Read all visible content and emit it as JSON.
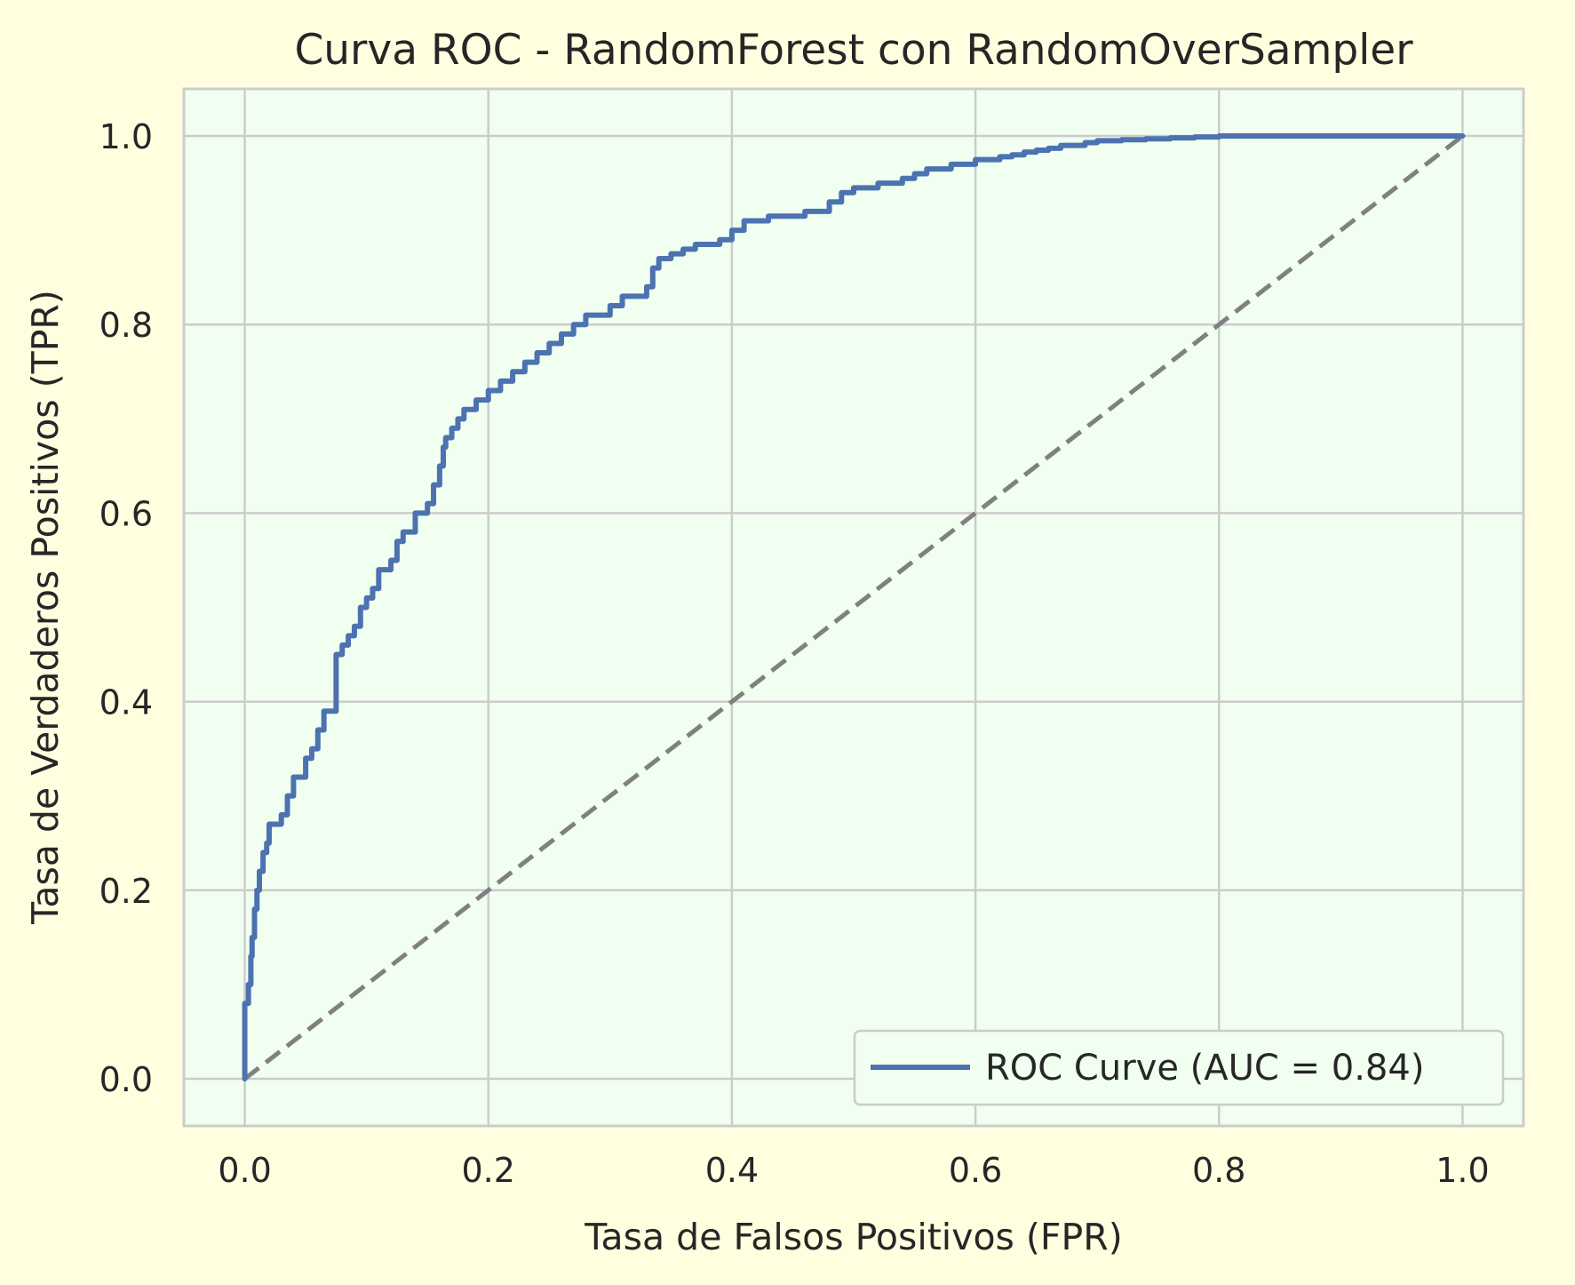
{
  "colors": {
    "page_background": "#ffffe0",
    "plot_background": "#f0fff0",
    "grid": "#cccccc",
    "axes_frame": "#cccccc",
    "text": "#262626",
    "roc_line": "#4c72b0",
    "diagonal": "#808080"
  },
  "chart_data": {
    "type": "line",
    "title": "Curva ROC - RandomForest con RandomOverSampler",
    "xlabel": "Tasa de Falsos Positivos (FPR)",
    "ylabel": "Tasa de Verdaderos Positivos (TPR)",
    "xlim": [
      -0.05,
      1.05
    ],
    "ylim": [
      -0.05,
      1.05
    ],
    "xticks": [
      0.0,
      0.2,
      0.4,
      0.6,
      0.8,
      1.0
    ],
    "yticks": [
      0.0,
      0.2,
      0.4,
      0.6,
      0.8,
      1.0
    ],
    "xtick_labels": [
      "0.0",
      "0.2",
      "0.4",
      "0.6",
      "0.8",
      "1.0"
    ],
    "ytick_labels": [
      "0.0",
      "0.2",
      "0.4",
      "0.6",
      "0.8",
      "1.0"
    ],
    "grid": true,
    "legend_position": "lower-right",
    "series": [
      {
        "name": "ROC Curve (AUC = 0.84)",
        "style": "solid",
        "x": [
          0.0,
          0.0,
          0.003,
          0.005,
          0.006,
          0.008,
          0.01,
          0.012,
          0.015,
          0.018,
          0.02,
          0.025,
          0.03,
          0.035,
          0.04,
          0.05,
          0.055,
          0.06,
          0.065,
          0.07,
          0.075,
          0.08,
          0.085,
          0.09,
          0.095,
          0.1,
          0.105,
          0.11,
          0.12,
          0.125,
          0.13,
          0.14,
          0.15,
          0.155,
          0.16,
          0.163,
          0.165,
          0.17,
          0.175,
          0.18,
          0.19,
          0.2,
          0.21,
          0.22,
          0.23,
          0.24,
          0.25,
          0.26,
          0.27,
          0.28,
          0.29,
          0.3,
          0.31,
          0.32,
          0.33,
          0.335,
          0.34,
          0.35,
          0.36,
          0.37,
          0.38,
          0.39,
          0.4,
          0.41,
          0.42,
          0.43,
          0.44,
          0.45,
          0.46,
          0.47,
          0.48,
          0.49,
          0.5,
          0.51,
          0.52,
          0.53,
          0.54,
          0.55,
          0.56,
          0.57,
          0.58,
          0.59,
          0.6,
          0.61,
          0.62,
          0.63,
          0.64,
          0.65,
          0.66,
          0.67,
          0.68,
          0.69,
          0.7,
          0.72,
          0.74,
          0.76,
          0.78,
          0.8,
          0.81,
          0.83,
          0.86,
          0.9,
          0.95,
          1.0
        ],
        "y": [
          0.0,
          0.05,
          0.08,
          0.1,
          0.13,
          0.15,
          0.18,
          0.2,
          0.22,
          0.24,
          0.25,
          0.27,
          0.27,
          0.28,
          0.3,
          0.32,
          0.34,
          0.35,
          0.37,
          0.39,
          0.39,
          0.45,
          0.46,
          0.47,
          0.48,
          0.5,
          0.51,
          0.52,
          0.54,
          0.55,
          0.57,
          0.58,
          0.6,
          0.61,
          0.63,
          0.65,
          0.67,
          0.68,
          0.69,
          0.7,
          0.71,
          0.72,
          0.73,
          0.74,
          0.75,
          0.76,
          0.77,
          0.78,
          0.79,
          0.8,
          0.81,
          0.81,
          0.82,
          0.83,
          0.83,
          0.84,
          0.86,
          0.87,
          0.875,
          0.88,
          0.885,
          0.885,
          0.89,
          0.9,
          0.91,
          0.91,
          0.915,
          0.915,
          0.915,
          0.92,
          0.92,
          0.93,
          0.94,
          0.945,
          0.945,
          0.95,
          0.95,
          0.955,
          0.96,
          0.965,
          0.965,
          0.97,
          0.97,
          0.975,
          0.975,
          0.978,
          0.98,
          0.983,
          0.985,
          0.987,
          0.99,
          0.99,
          0.993,
          0.995,
          0.996,
          0.997,
          0.998,
          0.999,
          1.0,
          1.0,
          1.0,
          1.0,
          1.0,
          1.0
        ]
      },
      {
        "style": "dashed",
        "x": [
          0.0,
          1.0
        ],
        "y": [
          0.0,
          1.0
        ]
      }
    ]
  }
}
